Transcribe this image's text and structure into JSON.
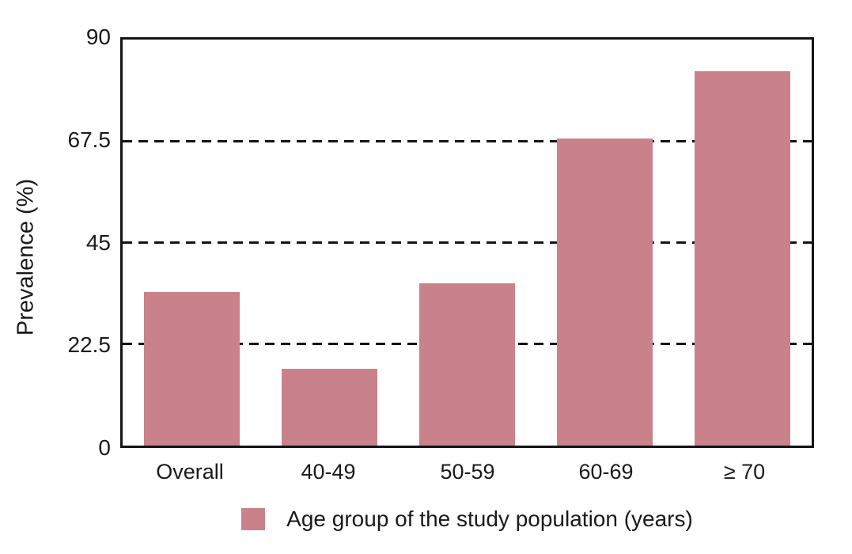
{
  "chart_data": {
    "type": "bar",
    "title": "",
    "xlabel": "",
    "ylabel": "Prevalence (%)",
    "categories": [
      "Overall",
      "40-49",
      "50-59",
      "60-69",
      "≥ 70"
    ],
    "values": [
      34,
      17,
      36,
      68,
      83
    ],
    "ylim": [
      0,
      90
    ],
    "yticks": [
      90,
      67.5,
      45,
      22.5,
      0
    ],
    "gridlines": [
      22.5,
      45,
      67.5
    ],
    "grid_style": "horizontal-dashed",
    "legend_label": "Age group of the study population (years)",
    "legend_position": "bottom-center",
    "bar_color": "#C98289",
    "axis_color": "#141414",
    "text_color": "#1a1a1a"
  }
}
